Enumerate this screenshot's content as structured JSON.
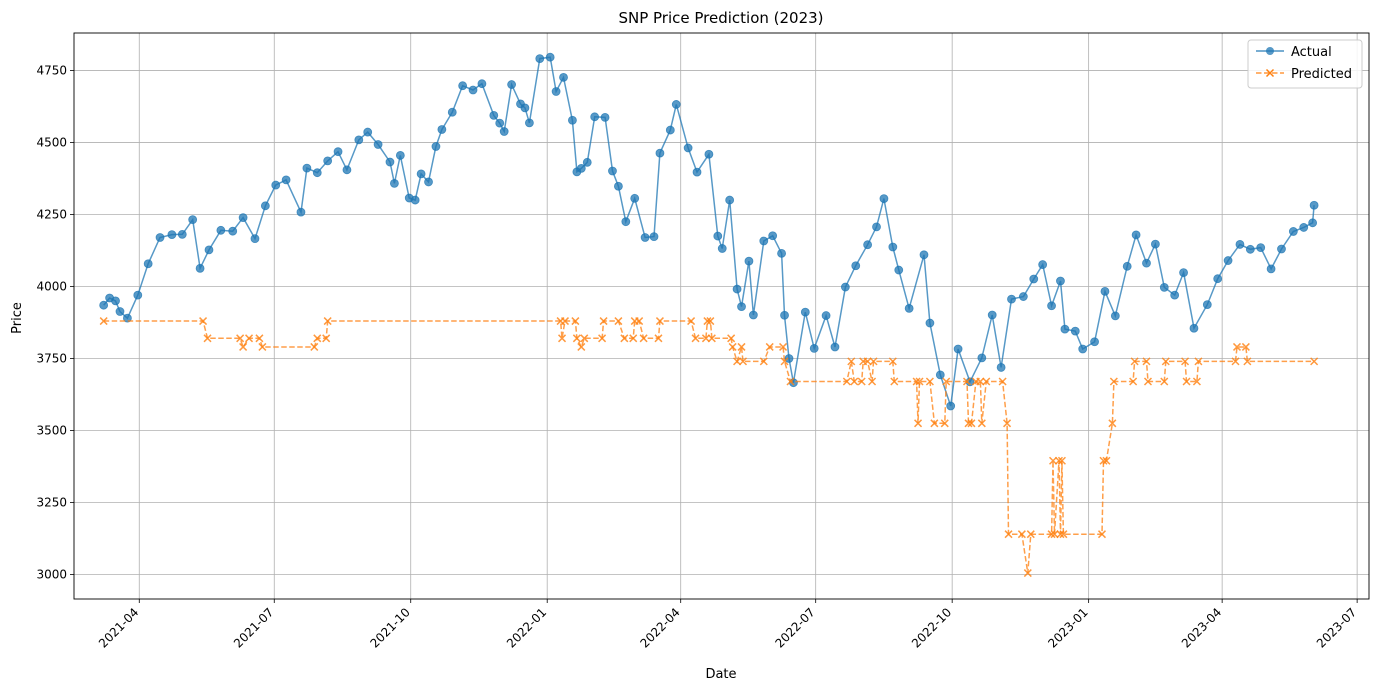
{
  "chart_data": {
    "type": "line",
    "title": "SNP Price Prediction (2023)",
    "xlabel": "Date",
    "ylabel": "Price",
    "grid": true,
    "legend_position": "top-right",
    "x_range": [
      "2021-02-16",
      "2023-07-09"
    ],
    "y_range": [
      2915,
      4880
    ],
    "x_ticks": [
      "2021-04",
      "2021-07",
      "2021-10",
      "2022-01",
      "2022-04",
      "2022-07",
      "2022-10",
      "2023-01",
      "2023-04",
      "2023-07"
    ],
    "y_ticks": [
      3000,
      3250,
      3500,
      3750,
      4000,
      4250,
      4500,
      4750
    ],
    "series": [
      {
        "name": "Actual",
        "color": "#1f77b4",
        "marker": "circle",
        "line_style": "solid",
        "points": [
          [
            "2021-03-08",
            3935
          ],
          [
            "2021-03-12",
            3960
          ],
          [
            "2021-03-16",
            3950
          ],
          [
            "2021-03-19",
            3913
          ],
          [
            "2021-03-24",
            3890
          ],
          [
            "2021-03-31",
            3970
          ],
          [
            "2021-04-07",
            4079
          ],
          [
            "2021-04-15",
            4170
          ],
          [
            "2021-04-23",
            4180
          ],
          [
            "2021-04-30",
            4181
          ],
          [
            "2021-05-07",
            4232
          ],
          [
            "2021-05-12",
            4063
          ],
          [
            "2021-05-18",
            4127
          ],
          [
            "2021-05-26",
            4195
          ],
          [
            "2021-06-03",
            4192
          ],
          [
            "2021-06-10",
            4239
          ],
          [
            "2021-06-18",
            4166
          ],
          [
            "2021-06-25",
            4280
          ],
          [
            "2021-07-02",
            4352
          ],
          [
            "2021-07-09",
            4370
          ],
          [
            "2021-07-19",
            4258
          ],
          [
            "2021-07-23",
            4411
          ],
          [
            "2021-07-30",
            4395
          ],
          [
            "2021-08-06",
            4436
          ],
          [
            "2021-08-13",
            4468
          ],
          [
            "2021-08-19",
            4405
          ],
          [
            "2021-08-27",
            4509
          ],
          [
            "2021-09-02",
            4536
          ],
          [
            "2021-09-09",
            4493
          ],
          [
            "2021-09-17",
            4432
          ],
          [
            "2021-09-20",
            4358
          ],
          [
            "2021-09-24",
            4455
          ],
          [
            "2021-09-30",
            4307
          ],
          [
            "2021-10-04",
            4300
          ],
          [
            "2021-10-08",
            4391
          ],
          [
            "2021-10-13",
            4363
          ],
          [
            "2021-10-18",
            4486
          ],
          [
            "2021-10-22",
            4545
          ],
          [
            "2021-10-29",
            4605
          ],
          [
            "2021-11-05",
            4697
          ],
          [
            "2021-11-12",
            4682
          ],
          [
            "2021-11-18",
            4704
          ],
          [
            "2021-11-26",
            4594
          ],
          [
            "2021-11-30",
            4567
          ],
          [
            "2021-12-03",
            4538
          ],
          [
            "2021-12-08",
            4701
          ],
          [
            "2021-12-14",
            4634
          ],
          [
            "2021-12-17",
            4620
          ],
          [
            "2021-12-20",
            4568
          ],
          [
            "2021-12-27",
            4791
          ],
          [
            "2022-01-03",
            4796
          ],
          [
            "2022-01-07",
            4677
          ],
          [
            "2022-01-12",
            4726
          ],
          [
            "2022-01-18",
            4577
          ],
          [
            "2022-01-21",
            4398
          ],
          [
            "2022-01-24",
            4410
          ],
          [
            "2022-01-28",
            4431
          ],
          [
            "2022-02-02",
            4589
          ],
          [
            "2022-02-09",
            4587
          ],
          [
            "2022-02-14",
            4401
          ],
          [
            "2022-02-18",
            4348
          ],
          [
            "2022-02-23",
            4225
          ],
          [
            "2022-03-01",
            4306
          ],
          [
            "2022-03-08",
            4170
          ],
          [
            "2022-03-14",
            4173
          ],
          [
            "2022-03-18",
            4463
          ],
          [
            "2022-03-25",
            4543
          ],
          [
            "2022-03-29",
            4632
          ],
          [
            "2022-04-06",
            4481
          ],
          [
            "2022-04-12",
            4397
          ],
          [
            "2022-04-20",
            4459
          ],
          [
            "2022-04-26",
            4175
          ],
          [
            "2022-04-29",
            4132
          ],
          [
            "2022-05-04",
            4300
          ],
          [
            "2022-05-09",
            3991
          ],
          [
            "2022-05-12",
            3930
          ],
          [
            "2022-05-17",
            4088
          ],
          [
            "2022-05-20",
            3901
          ],
          [
            "2022-05-27",
            4158
          ],
          [
            "2022-06-02",
            4176
          ],
          [
            "2022-06-08",
            4115
          ],
          [
            "2022-06-10",
            3900
          ],
          [
            "2022-06-13",
            3750
          ],
          [
            "2022-06-16",
            3666
          ],
          [
            "2022-06-24",
            3911
          ],
          [
            "2022-06-30",
            3785
          ],
          [
            "2022-07-08",
            3899
          ],
          [
            "2022-07-14",
            3790
          ],
          [
            "2022-07-21",
            3998
          ],
          [
            "2022-07-28",
            4072
          ],
          [
            "2022-08-05",
            4145
          ],
          [
            "2022-08-11",
            4207
          ],
          [
            "2022-08-16",
            4305
          ],
          [
            "2022-08-22",
            4137
          ],
          [
            "2022-08-26",
            4057
          ],
          [
            "2022-09-02",
            3924
          ],
          [
            "2022-09-12",
            4110
          ],
          [
            "2022-09-16",
            3873
          ],
          [
            "2022-09-23",
            3693
          ],
          [
            "2022-09-30",
            3585
          ],
          [
            "2022-10-05",
            3783
          ],
          [
            "2022-10-13",
            3669
          ],
          [
            "2022-10-21",
            3752
          ],
          [
            "2022-10-28",
            3901
          ],
          [
            "2022-11-03",
            3719
          ],
          [
            "2022-11-10",
            3956
          ],
          [
            "2022-11-18",
            3965
          ],
          [
            "2022-11-25",
            4026
          ],
          [
            "2022-12-01",
            4076
          ],
          [
            "2022-12-07",
            3933
          ],
          [
            "2022-12-13",
            4019
          ],
          [
            "2022-12-16",
            3852
          ],
          [
            "2022-12-23",
            3845
          ],
          [
            "2022-12-28",
            3783
          ],
          [
            "2023-01-05",
            3808
          ],
          [
            "2023-01-12",
            3983
          ],
          [
            "2023-01-19",
            3898
          ],
          [
            "2023-01-27",
            4070
          ],
          [
            "2023-02-02",
            4179
          ],
          [
            "2023-02-09",
            4081
          ],
          [
            "2023-02-15",
            4147
          ],
          [
            "2023-02-21",
            3997
          ],
          [
            "2023-02-28",
            3970
          ],
          [
            "2023-03-06",
            4048
          ],
          [
            "2023-03-13",
            3855
          ],
          [
            "2023-03-22",
            3937
          ],
          [
            "2023-03-29",
            4027
          ],
          [
            "2023-04-05",
            4090
          ],
          [
            "2023-04-13",
            4146
          ],
          [
            "2023-04-20",
            4129
          ],
          [
            "2023-04-27",
            4135
          ],
          [
            "2023-05-04",
            4061
          ],
          [
            "2023-05-11",
            4130
          ],
          [
            "2023-05-19",
            4191
          ],
          [
            "2023-05-26",
            4205
          ],
          [
            "2023-06-01",
            4221
          ],
          [
            "2023-06-02",
            4282
          ]
        ]
      },
      {
        "name": "Predicted",
        "color": "#ff7f0e",
        "marker": "x",
        "line_style": "dashed",
        "points": [
          [
            "2021-03-08",
            3880
          ],
          [
            "2021-05-14",
            3880
          ],
          [
            "2021-05-17",
            3820
          ],
          [
            "2021-06-08",
            3820
          ],
          [
            "2021-06-10",
            3790
          ],
          [
            "2021-06-14",
            3820
          ],
          [
            "2021-06-21",
            3820
          ],
          [
            "2021-06-23",
            3790
          ],
          [
            "2021-07-28",
            3790
          ],
          [
            "2021-07-30",
            3820
          ],
          [
            "2021-08-05",
            3820
          ],
          [
            "2021-08-06",
            3880
          ],
          [
            "2022-01-10",
            3880
          ],
          [
            "2022-01-11",
            3820
          ],
          [
            "2022-01-13",
            3880
          ],
          [
            "2022-01-20",
            3880
          ],
          [
            "2022-01-21",
            3820
          ],
          [
            "2022-01-24",
            3790
          ],
          [
            "2022-01-26",
            3820
          ],
          [
            "2022-02-07",
            3820
          ],
          [
            "2022-02-08",
            3880
          ],
          [
            "2022-02-18",
            3880
          ],
          [
            "2022-02-22",
            3820
          ],
          [
            "2022-02-28",
            3820
          ],
          [
            "2022-03-01",
            3880
          ],
          [
            "2022-03-04",
            3880
          ],
          [
            "2022-03-07",
            3820
          ],
          [
            "2022-03-17",
            3820
          ],
          [
            "2022-03-18",
            3880
          ],
          [
            "2022-04-08",
            3880
          ],
          [
            "2022-04-11",
            3820
          ],
          [
            "2022-04-18",
            3820
          ],
          [
            "2022-04-19",
            3880
          ],
          [
            "2022-04-21",
            3880
          ],
          [
            "2022-04-22",
            3820
          ],
          [
            "2022-05-05",
            3820
          ],
          [
            "2022-05-06",
            3790
          ],
          [
            "2022-05-09",
            3740
          ],
          [
            "2022-05-12",
            3790
          ],
          [
            "2022-05-13",
            3740
          ],
          [
            "2022-05-27",
            3740
          ],
          [
            "2022-05-31",
            3790
          ],
          [
            "2022-06-09",
            3790
          ],
          [
            "2022-06-10",
            3740
          ],
          [
            "2022-06-14",
            3670
          ],
          [
            "2022-07-22",
            3670
          ],
          [
            "2022-07-25",
            3740
          ],
          [
            "2022-07-27",
            3670
          ],
          [
            "2022-08-01",
            3670
          ],
          [
            "2022-08-02",
            3740
          ],
          [
            "2022-08-05",
            3740
          ],
          [
            "2022-08-08",
            3670
          ],
          [
            "2022-08-09",
            3740
          ],
          [
            "2022-08-22",
            3740
          ],
          [
            "2022-08-23",
            3670
          ],
          [
            "2022-09-07",
            3670
          ],
          [
            "2022-09-08",
            3525
          ],
          [
            "2022-09-09",
            3670
          ],
          [
            "2022-09-16",
            3670
          ],
          [
            "2022-09-19",
            3525
          ],
          [
            "2022-09-26",
            3525
          ],
          [
            "2022-09-27",
            3670
          ],
          [
            "2022-10-11",
            3670
          ],
          [
            "2022-10-12",
            3525
          ],
          [
            "2022-10-14",
            3525
          ],
          [
            "2022-10-17",
            3670
          ],
          [
            "2022-10-20",
            3670
          ],
          [
            "2022-10-21",
            3525
          ],
          [
            "2022-10-24",
            3670
          ],
          [
            "2022-11-04",
            3670
          ],
          [
            "2022-11-07",
            3525
          ],
          [
            "2022-11-08",
            3140
          ],
          [
            "2022-11-17",
            3140
          ],
          [
            "2022-11-21",
            3005
          ],
          [
            "2022-11-23",
            3140
          ],
          [
            "2022-12-07",
            3140
          ],
          [
            "2022-12-08",
            3395
          ],
          [
            "2022-12-09",
            3140
          ],
          [
            "2022-12-12",
            3395
          ],
          [
            "2022-12-13",
            3140
          ],
          [
            "2022-12-14",
            3395
          ],
          [
            "2022-12-15",
            3140
          ],
          [
            "2023-01-10",
            3140
          ],
          [
            "2023-01-11",
            3395
          ],
          [
            "2023-01-13",
            3395
          ],
          [
            "2023-01-17",
            3525
          ],
          [
            "2023-01-18",
            3670
          ],
          [
            "2023-01-31",
            3670
          ],
          [
            "2023-02-01",
            3740
          ],
          [
            "2023-02-09",
            3740
          ],
          [
            "2023-02-10",
            3670
          ],
          [
            "2023-02-21",
            3670
          ],
          [
            "2023-02-22",
            3740
          ],
          [
            "2023-03-07",
            3740
          ],
          [
            "2023-03-08",
            3670
          ],
          [
            "2023-03-15",
            3670
          ],
          [
            "2023-03-16",
            3740
          ],
          [
            "2023-04-10",
            3740
          ],
          [
            "2023-04-11",
            3790
          ],
          [
            "2023-04-17",
            3790
          ],
          [
            "2023-04-18",
            3740
          ],
          [
            "2023-06-02",
            3740
          ]
        ]
      }
    ]
  }
}
